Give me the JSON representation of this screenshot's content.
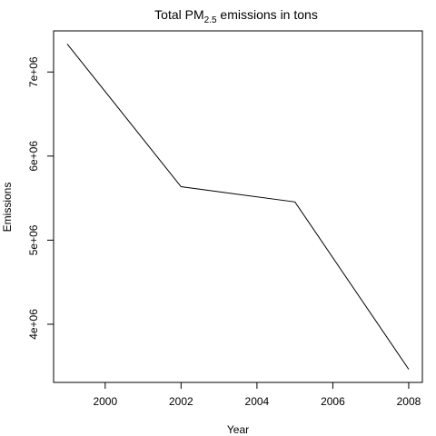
{
  "chart_data": {
    "type": "line",
    "title": {
      "prefix": "Total PM",
      "subscript": "2.5",
      "suffix": " emissions in tons"
    },
    "xlabel": "Year",
    "ylabel": "Emissions",
    "x": [
      1999,
      2002,
      2005,
      2008
    ],
    "values": [
      7332967,
      5635780,
      5454703,
      3464206
    ],
    "xlim": [
      1998.64,
      2008.36
    ],
    "ylim": [
      3308216,
      7488957
    ],
    "x_ticks": [
      2000,
      2002,
      2004,
      2006,
      2008
    ],
    "x_tick_labels": [
      "2000",
      "2002",
      "2004",
      "2006",
      "2008"
    ],
    "y_ticks": [
      4000000,
      5000000,
      6000000,
      7000000
    ],
    "y_tick_labels": [
      "4e+06",
      "5e+06",
      "6e+06",
      "7e+06"
    ],
    "grid": false,
    "legend": "none",
    "line_color": "#000000"
  }
}
